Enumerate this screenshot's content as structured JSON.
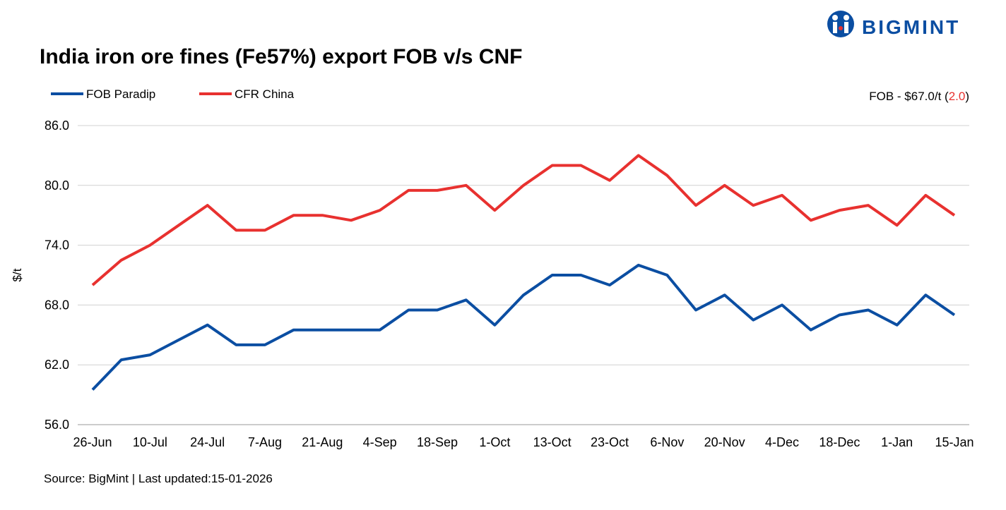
{
  "chart_data": {
    "type": "line",
    "title": "India iron ore fines (Fe57%) export FOB v/s CNF",
    "brand": "BIGMINT",
    "y_label": "$/t",
    "annotation": {
      "prefix": "FOB - $67.0/t (",
      "change": "2.0",
      "suffix": ")",
      "change_color": "#e8312f"
    },
    "source": "Source: BigMint | Last updated:15-01-2026",
    "categories": [
      "26-Jun",
      null,
      "10-Jul",
      null,
      "24-Jul",
      null,
      "7-Aug",
      null,
      "21-Aug",
      null,
      "4-Sep",
      null,
      "18-Sep",
      null,
      "1-Oct",
      null,
      "13-Oct",
      null,
      "23-Oct",
      null,
      "6-Nov",
      null,
      "20-Nov",
      null,
      "4-Dec",
      null,
      "18-Dec",
      null,
      "1-Jan",
      null,
      "15-Jan"
    ],
    "series": [
      {
        "name": "FOB Paradip",
        "color": "#0b4ea2",
        "values": [
          59.5,
          62.5,
          63.0,
          64.5,
          66.0,
          64.0,
          64.0,
          65.5,
          65.5,
          65.5,
          65.5,
          67.5,
          67.5,
          68.5,
          66.0,
          69.0,
          71.0,
          71.0,
          70.0,
          72.0,
          71.0,
          67.5,
          69.0,
          66.5,
          68.0,
          65.5,
          67.0,
          67.5,
          66.0,
          69.0,
          67.0
        ]
      },
      {
        "name": "CFR China",
        "color": "#e8312f",
        "values": [
          70.0,
          72.5,
          74.0,
          76.0,
          78.0,
          75.5,
          75.5,
          77.0,
          77.0,
          76.5,
          77.5,
          79.5,
          79.5,
          80.0,
          77.5,
          80.0,
          82.0,
          82.0,
          80.5,
          83.0,
          81.0,
          78.0,
          80.0,
          78.0,
          79.0,
          76.5,
          77.5,
          78.0,
          76.0,
          79.0,
          77.0
        ]
      }
    ],
    "ylim": [
      56,
      86
    ],
    "yticks": [
      {
        "value": 56,
        "label": "56.0"
      },
      {
        "value": 62,
        "label": "62.0"
      },
      {
        "value": 68,
        "label": "68.0"
      },
      {
        "value": 74,
        "label": "74.0"
      },
      {
        "value": 80,
        "label": "80.0"
      },
      {
        "value": 86,
        "label": "86.0"
      }
    ],
    "grid": true,
    "legend": "top-left"
  }
}
